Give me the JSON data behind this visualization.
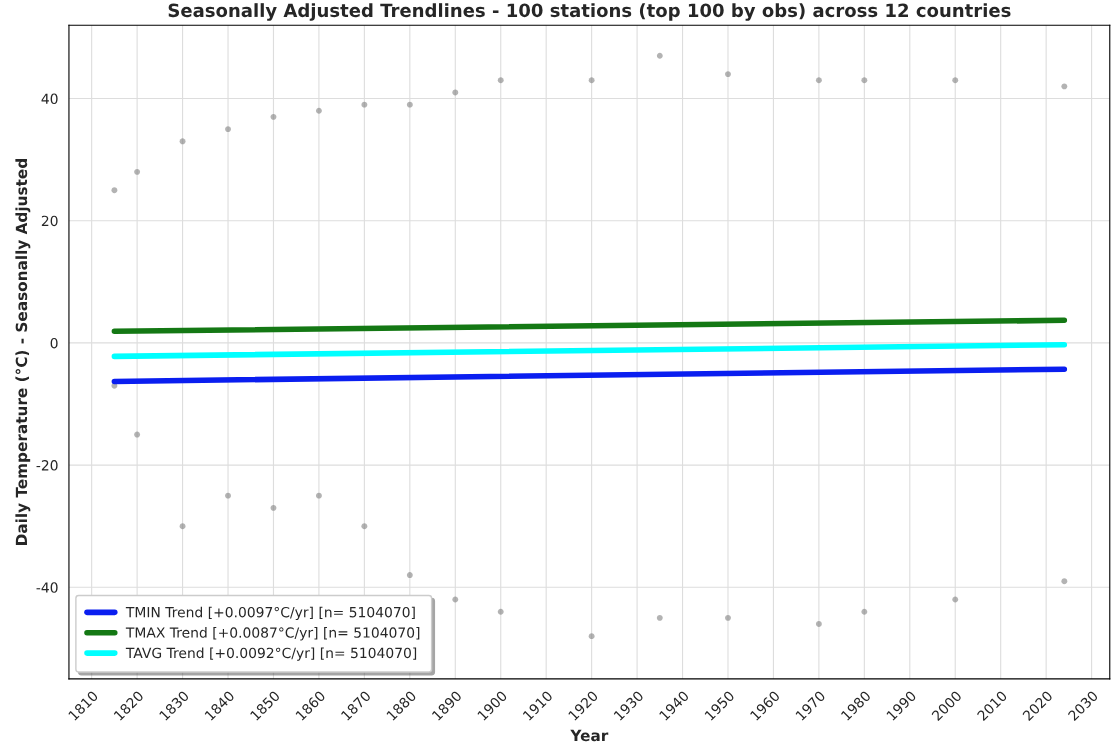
{
  "chart_data": {
    "type": "line",
    "title": "Seasonally Adjusted Trendlines - 100 stations (top 100 by obs) across 12 countries",
    "xlabel": "Year",
    "ylabel": "Daily Temperature (°C) - Seasonally Adjusted",
    "xlim": [
      1805,
      2034
    ],
    "xticks": [
      1810,
      1820,
      1830,
      1840,
      1850,
      1860,
      1870,
      1880,
      1890,
      1900,
      1910,
      1920,
      1930,
      1940,
      1950,
      1960,
      1970,
      1980,
      1990,
      2000,
      2010,
      2020,
      2030
    ],
    "ylim": [
      -55,
      52
    ],
    "yticks": [
      -40,
      -20,
      0,
      20,
      40
    ],
    "grid": true,
    "legend": "bottom left",
    "series": [
      {
        "type": "scatter",
        "color": "#808080",
        "x": [
          1815,
          1820,
          1830,
          1840,
          1850,
          1860,
          1870,
          1880,
          1890,
          1900,
          1920,
          1935,
          1950,
          1970,
          1980,
          2000,
          2024,
          1815,
          1820,
          1830,
          1840,
          1850,
          1860,
          1870,
          1880,
          1890,
          1900,
          1920,
          1935,
          1950,
          1970,
          1980,
          2000,
          2024
        ],
        "values": [
          25,
          28,
          33,
          35,
          37,
          38,
          39,
          39,
          41,
          43,
          43,
          47,
          44,
          43,
          43,
          43,
          42,
          -7,
          -15,
          -30,
          -25,
          -27,
          -25,
          -30,
          -38,
          -42,
          -44,
          -48,
          -45,
          -45,
          -46,
          -44,
          -42,
          -39
        ]
      },
      {
        "name": "TMIN Trend [+0.0097°C/yr] [n= 5104070]",
        "color": "#0a1ef0",
        "x": [
          1815,
          2024
        ],
        "values": [
          -6.3,
          -4.3
        ]
      },
      {
        "name": "TMAX Trend [+0.0087°C/yr] [n= 5104070]",
        "color": "#147814",
        "x": [
          1815,
          2024
        ],
        "values": [
          1.9,
          3.7
        ]
      },
      {
        "name": "TAVG Trend [+0.0092°C/yr] [n= 5104070]",
        "color": "#00ffff",
        "x": [
          1815,
          2024
        ],
        "values": [
          -2.2,
          -0.3
        ]
      }
    ]
  }
}
